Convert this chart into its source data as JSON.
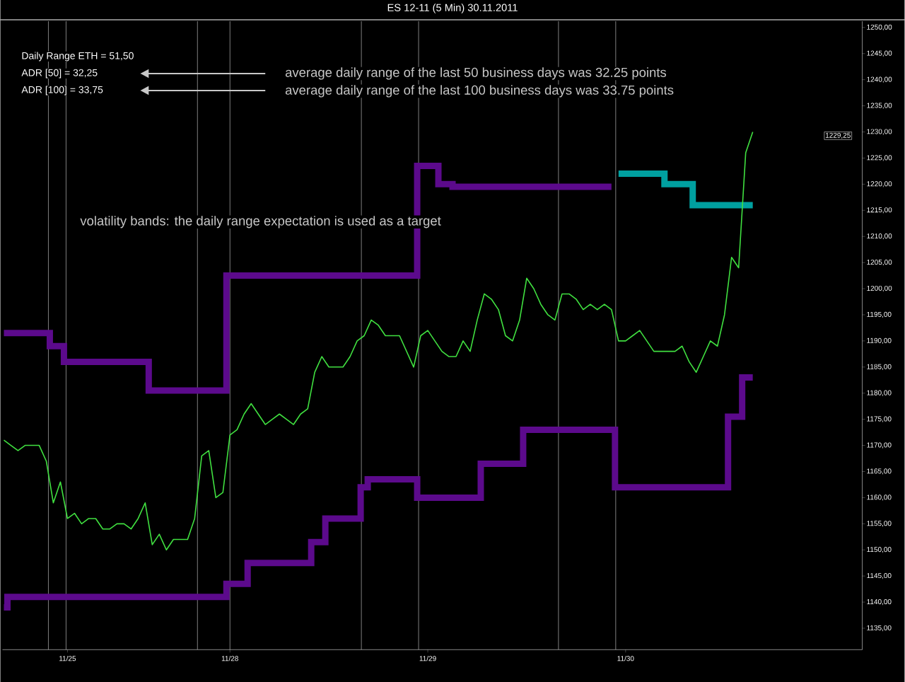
{
  "chart_data": {
    "type": "line",
    "title": "ES 12-11 (5 Min)  30.11.2011",
    "categories": [
      null,
      null,
      null,
      null,
      null,
      null,
      null,
      null,
      null,
      "11/25",
      null,
      null,
      null,
      null,
      null,
      null,
      null,
      null,
      null,
      null,
      null,
      null,
      null,
      null,
      null,
      null,
      null,
      null,
      null,
      null,
      null,
      null,
      "11/28",
      null,
      null,
      null,
      null,
      null,
      null,
      null,
      null,
      null,
      null,
      null,
      null,
      null,
      null,
      null,
      null,
      null,
      null,
      null,
      null,
      null,
      null,
      null,
      null,
      null,
      null,
      null,
      "11/29",
      null,
      null,
      null,
      null,
      null,
      null,
      null,
      null,
      null,
      null,
      null,
      null,
      null,
      null,
      null,
      null,
      null,
      null,
      null,
      null,
      null,
      null,
      null,
      null,
      null,
      null,
      null,
      "11/30",
      null,
      null,
      null,
      null,
      null,
      null,
      null,
      null,
      null,
      null,
      null,
      null,
      null,
      null,
      null,
      null,
      null,
      null,
      null,
      null,
      null,
      null,
      null,
      null,
      null,
      null,
      null,
      null,
      null,
      null,
      null,
      null,
      null
    ],
    "ylim": [
      1130.9,
      1251.2
    ],
    "yticks": [
      {
        "value": 1135,
        "label": "1135,00"
      },
      {
        "value": 1140,
        "label": "1140,00"
      },
      {
        "value": 1145,
        "label": "1145,00"
      },
      {
        "value": 1150,
        "label": "1150,00"
      },
      {
        "value": 1155,
        "label": "1155,00"
      },
      {
        "value": 1160,
        "label": "1160,00"
      },
      {
        "value": 1165,
        "label": "1165,00"
      },
      {
        "value": 1170,
        "label": "1170,00"
      },
      {
        "value": 1175,
        "label": "1175,00"
      },
      {
        "value": 1180,
        "label": "1180,00"
      },
      {
        "value": 1185,
        "label": "1185,00"
      },
      {
        "value": 1190,
        "label": "1190,00"
      },
      {
        "value": 1195,
        "label": "1195,00"
      },
      {
        "value": 1200,
        "label": "1200,00"
      },
      {
        "value": 1205,
        "label": "1205,00"
      },
      {
        "value": 1210,
        "label": "1210,00"
      },
      {
        "value": 1215,
        "label": "1215,00"
      },
      {
        "value": 1220,
        "label": "1220,00"
      },
      {
        "value": 1225,
        "label": "1225,00"
      },
      {
        "value": 1230,
        "label": "1230,00"
      },
      {
        "value": 1235,
        "label": "1235,00"
      },
      {
        "value": 1240,
        "label": "1240,00"
      },
      {
        "value": 1245,
        "label": "1245,00"
      },
      {
        "value": 1250,
        "label": "1250,00"
      }
    ],
    "annotations": [
      "Daily Range ETH = 51,50",
      "ADR [50] = 32,25",
      "ADR [100] = 33,75",
      "average daily range of the last 50 business days was 32.25 points",
      "average daily range of the last 100 business days was 33.75 points",
      "volatility bands: the daily range expectation is used as a target",
      "1229,25"
    ],
    "series": [
      {
        "type": "step",
        "color": "#5c0a8c",
        "values": [
          1191.5,
          1191.5,
          1191.5,
          1191.5,
          1191.5,
          1191.5,
          1191.5,
          1189,
          1189,
          1186,
          1186,
          1186,
          1186,
          1186,
          1186,
          1186,
          1186,
          1186,
          1186,
          1186,
          1186,
          1180.5,
          1180.5,
          1180.5,
          1180.5,
          1180.5,
          1180.5,
          1180.5,
          1180.5,
          1180.5,
          1180.5,
          1180.5,
          1202.5,
          1202.5,
          1202.5,
          1202.5,
          1202.5,
          1202.5,
          1202.5,
          1202.5,
          1202.5,
          1202.5,
          1202.5,
          1202.5,
          1202.5,
          1202.5,
          1202.5,
          1202.5,
          1202.5,
          1202.5,
          1202.5,
          1202.5,
          1202.5,
          1202.5,
          1202.5,
          1202.5,
          1202.5,
          1202.5,
          1202.5,
          1223.5,
          1223.5,
          1223.5,
          1220,
          1220,
          1219.5,
          1219.5,
          1219.5,
          1219.5,
          1219.5,
          1219.5,
          1219.5,
          1219.5,
          1219.5,
          1219.5,
          1219.5,
          1219.5,
          1219.5,
          1219.5,
          1219.5,
          1219.5,
          1219.5,
          1219.5,
          1219.5,
          1219.5,
          1219.5,
          1219.5,
          1219.5,
          null,
          null,
          null,
          null,
          null,
          null,
          null,
          null,
          null,
          null,
          null,
          null,
          null,
          null,
          null,
          null,
          null,
          null,
          null,
          null,
          null,
          null,
          null,
          null,
          null,
          null,
          null,
          null,
          null,
          null,
          null,
          null,
          null,
          null,
          null
        ]
      },
      {
        "type": "step",
        "color": "#00a0a0",
        "values": [
          null,
          null,
          null,
          null,
          null,
          null,
          null,
          null,
          null,
          null,
          null,
          null,
          null,
          null,
          null,
          null,
          null,
          null,
          null,
          null,
          null,
          null,
          null,
          null,
          null,
          null,
          null,
          null,
          null,
          null,
          null,
          null,
          null,
          null,
          null,
          null,
          null,
          null,
          null,
          null,
          null,
          null,
          null,
          null,
          null,
          null,
          null,
          null,
          null,
          null,
          null,
          null,
          null,
          null,
          null,
          null,
          null,
          null,
          null,
          null,
          null,
          null,
          null,
          null,
          null,
          null,
          null,
          null,
          null,
          null,
          null,
          null,
          null,
          null,
          null,
          null,
          null,
          null,
          null,
          null,
          null,
          null,
          null,
          null,
          null,
          null,
          null,
          1222,
          1222,
          1222,
          1222,
          1222,
          1222,
          1222,
          1220,
          1220,
          1220,
          1220,
          1216,
          1216,
          1216,
          1216,
          1216,
          1216,
          1216,
          1216,
          1216,
          null,
          null,
          null,
          null,
          null,
          null,
          null,
          null,
          null,
          null,
          null,
          null,
          null,
          null,
          null
        ]
      },
      {
        "type": "step",
        "color": "#5c0a8c",
        "values": [
          1139,
          1141,
          1141,
          1141,
          1141,
          1141,
          1141,
          1141,
          1141,
          1141,
          1141,
          1141,
          1141,
          1141,
          1141,
          1141,
          1141,
          1141,
          1141,
          1141,
          1141,
          1141,
          1141,
          1141,
          1141,
          1141,
          1141,
          1141,
          1141,
          1141,
          1141,
          1141,
          1143.5,
          1143.5,
          1143.5,
          1147.5,
          1147.5,
          1147.5,
          1147.5,
          1147.5,
          1147.5,
          1147.5,
          1147.5,
          1147.5,
          1151.5,
          1151.5,
          1156,
          1156,
          1156,
          1156,
          1156,
          1162,
          1163.5,
          1163.5,
          1163.5,
          1163.5,
          1163.5,
          1163.5,
          1163.5,
          1160,
          1160,
          1160,
          1160,
          1160,
          1160,
          1160,
          1160,
          1160,
          1166.5,
          1166.5,
          1166.5,
          1166.5,
          1166.5,
          1166.5,
          1173,
          1173,
          1173,
          1173,
          1173,
          1173,
          1173,
          1173,
          1173,
          1173,
          1173,
          1173,
          1173,
          1162,
          1162,
          1162,
          1162,
          1162,
          1162,
          1162,
          1162,
          1162,
          1162,
          1162,
          1162,
          1162,
          1162,
          1162,
          1162,
          1175.5,
          1175.5,
          1183,
          1183,
          null,
          null,
          null,
          null,
          null,
          null,
          null,
          null,
          null,
          null,
          null,
          null,
          null,
          null,
          null
        ]
      },
      {
        "color": "#40e040",
        "values": [
          1171,
          1170,
          1169,
          1170,
          1170,
          1170,
          1167,
          1159,
          1163,
          1156,
          1157,
          1155,
          1156,
          1156,
          1154,
          1154,
          1155,
          1155,
          1154,
          1156,
          1159,
          1151,
          1153,
          1150,
          1152,
          1152,
          1152,
          1156,
          1168,
          1169,
          1160,
          1161,
          1172,
          1173,
          1176,
          1178,
          1176,
          1174,
          1175,
          1176,
          1175,
          1174,
          1176,
          1177,
          1184,
          1187,
          1185,
          1185,
          1185,
          1187,
          1190,
          1191,
          1194,
          1193,
          1191,
          1191,
          1191,
          1188,
          1185,
          1191,
          1192,
          1190,
          1188,
          1187,
          1187,
          1190,
          1188,
          1194,
          1199,
          1198,
          1196,
          1191,
          1190,
          1194,
          1202,
          1200,
          1197,
          1195,
          1194,
          1199,
          1199,
          1198,
          1196,
          1197,
          1196,
          1197,
          1196,
          1190,
          1190,
          1191,
          1192,
          1190,
          1188,
          1188,
          1188,
          1188,
          1189,
          1186,
          1184,
          1187,
          1190,
          1189,
          1195,
          1206,
          1204,
          1226,
          1230,
          null,
          null,
          null,
          null,
          null,
          null,
          null,
          null,
          null,
          null,
          null,
          null,
          null,
          null,
          null
        ]
      }
    ]
  }
}
